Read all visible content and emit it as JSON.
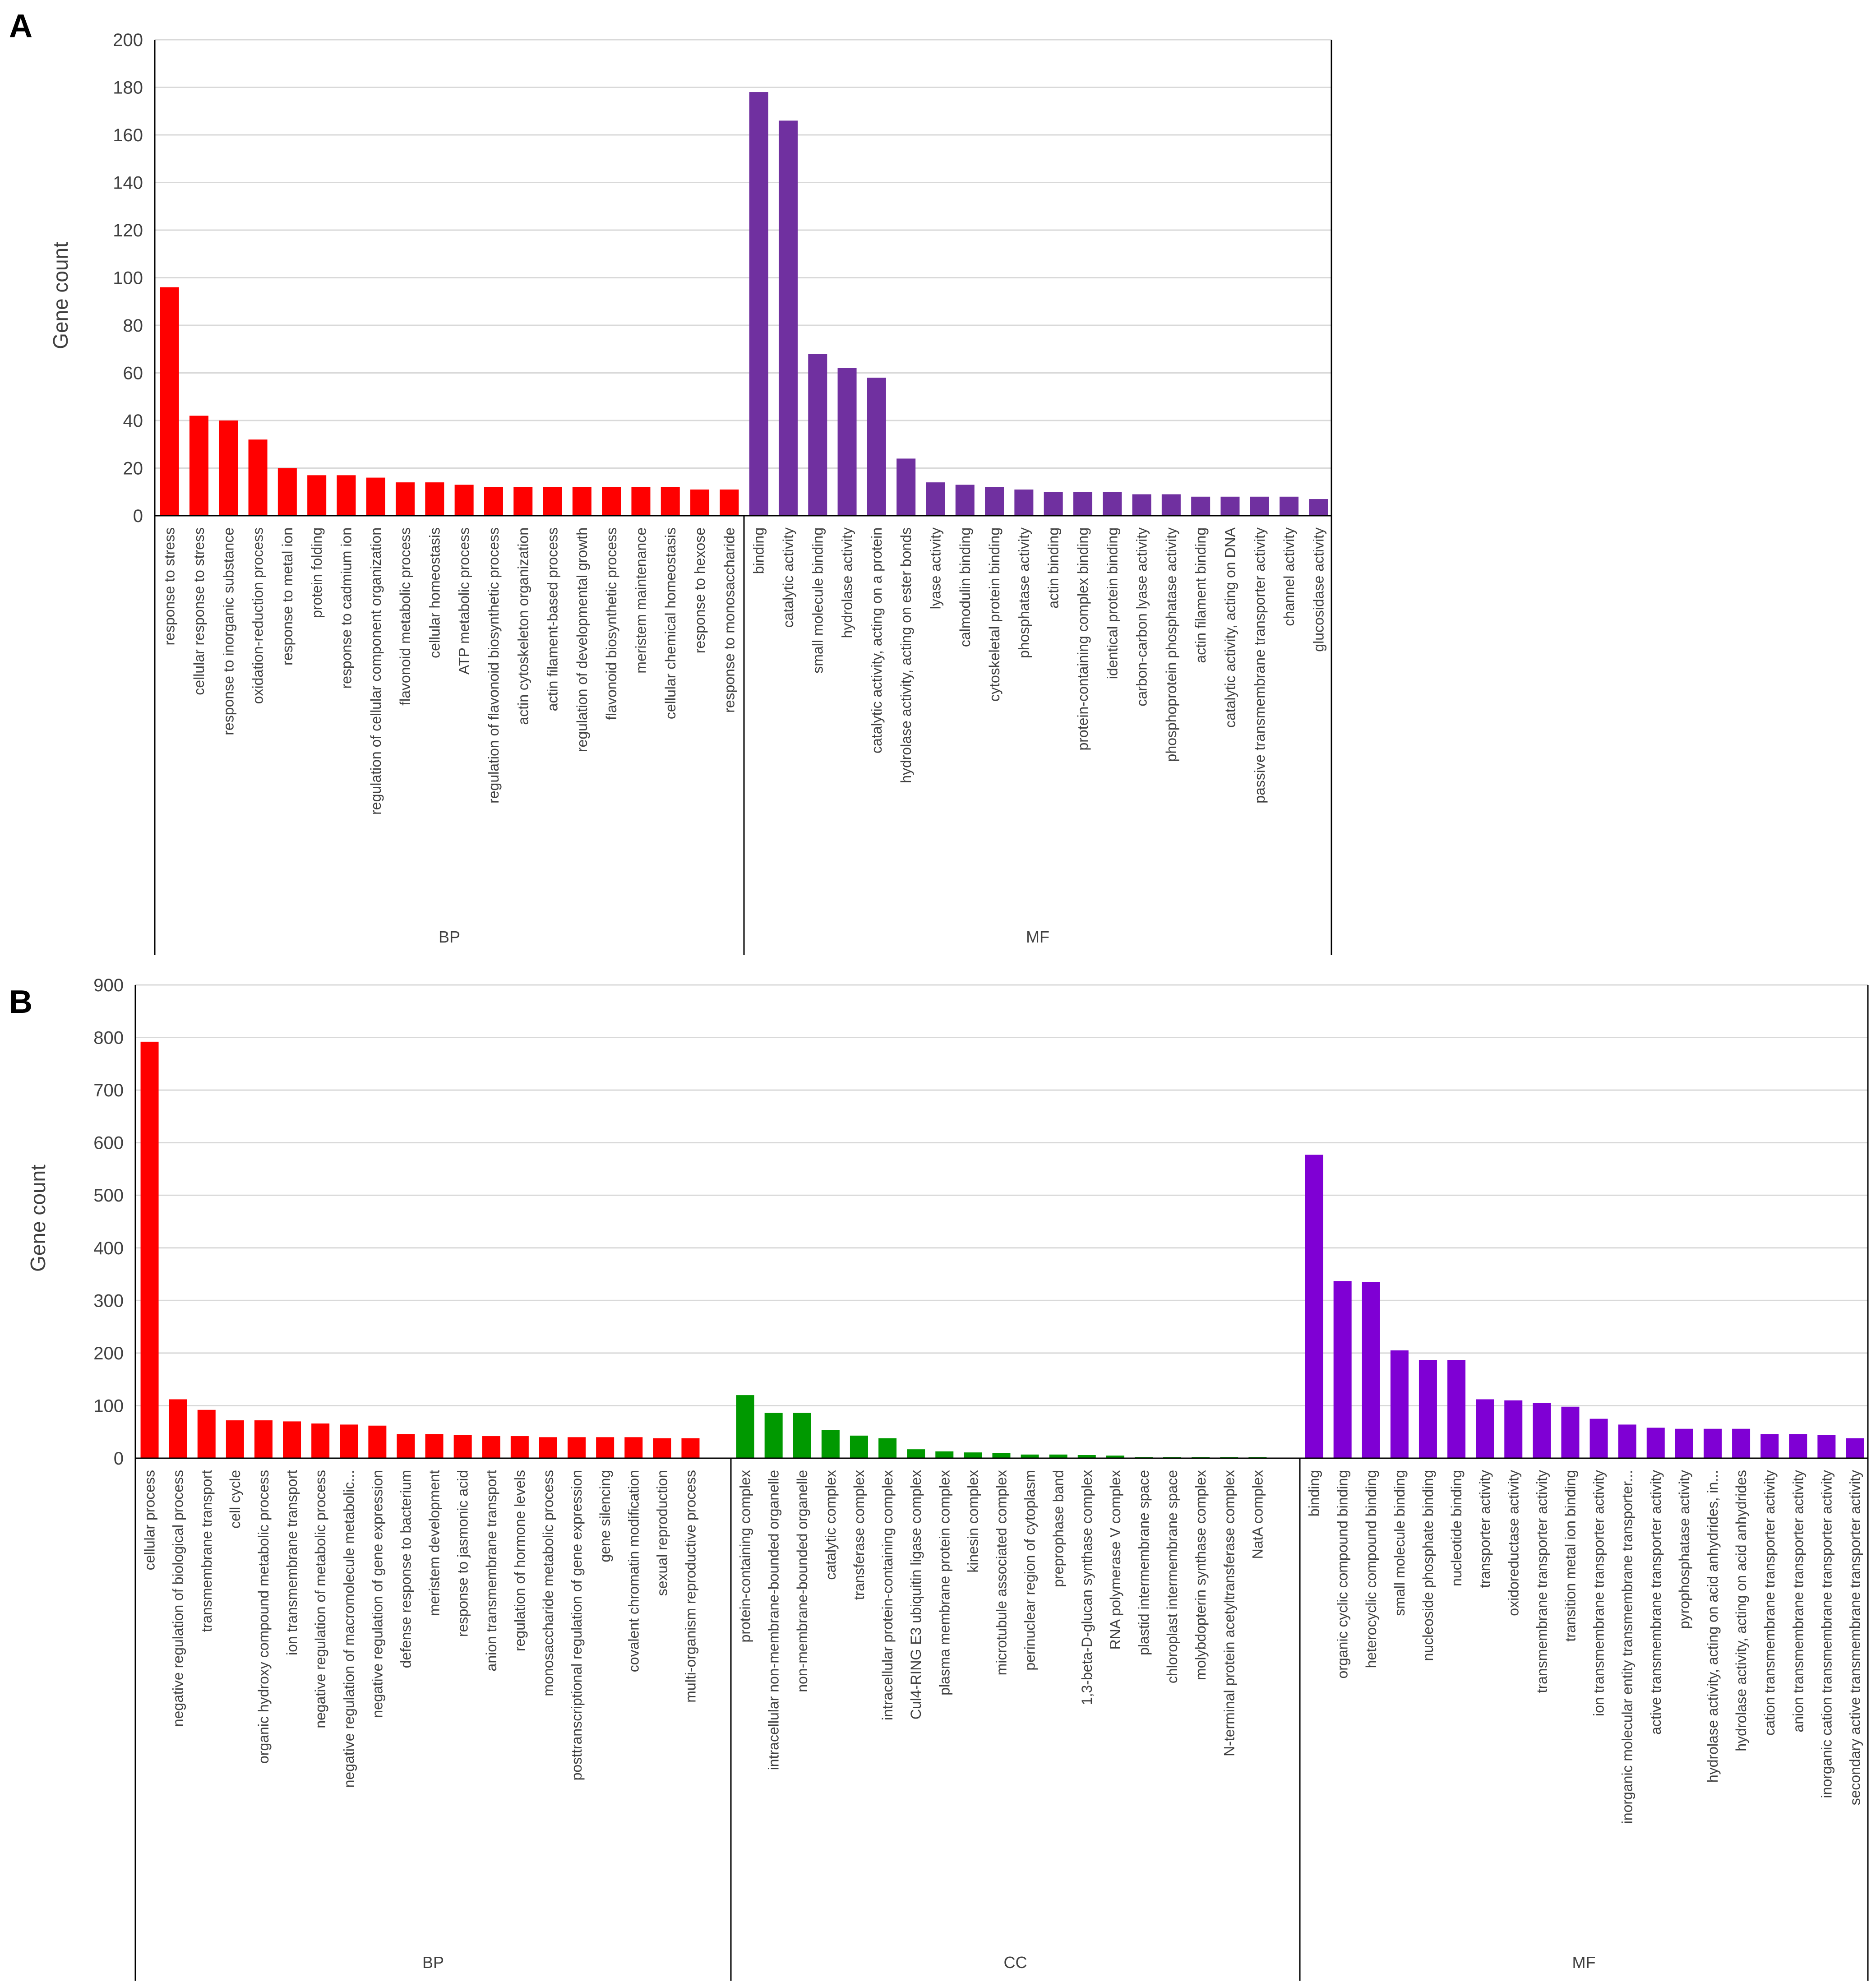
{
  "panels": [
    {
      "letter": "A",
      "ylabel": "Gene count",
      "ymax": 200,
      "yticks": [
        0,
        20,
        40,
        60,
        80,
        100,
        120,
        140,
        160,
        180,
        200
      ],
      "groups": [
        {
          "name": "BP",
          "color": "#ff0000",
          "categories": [
            "response to stress",
            "cellular response to stress",
            "response to inorganic substance",
            "oxidation-reduction process",
            "response to metal ion",
            "protein folding",
            "response to cadmium ion",
            "regulation of cellular component organization",
            "flavonoid metabolic process",
            "cellular homeostasis",
            "ATP metabolic process",
            "regulation of flavonoid biosynthetic process",
            "actin cytoskeleton organization",
            "actin filament-based process",
            "regulation of developmental growth",
            "flavonoid biosynthetic process",
            "meristem maintenance",
            "cellular chemical homeostasis",
            "response to hexose",
            "response to monosaccharide"
          ],
          "values": [
            96,
            42,
            40,
            32,
            20,
            17,
            17,
            16,
            14,
            14,
            13,
            12,
            12,
            12,
            12,
            12,
            12,
            12,
            11,
            11
          ]
        },
        {
          "name": "MF",
          "color": "#7030a0",
          "categories": [
            "binding",
            "catalytic activity",
            "small molecule binding",
            "hydrolase activity",
            "catalytic activity, acting on a protein",
            "hydrolase activity, acting on ester bonds",
            "lyase activity",
            "calmodulin binding",
            "cytoskeletal protein binding",
            "phosphatase activity",
            "actin binding",
            "protein-containing complex binding",
            "identical protein binding",
            "carbon-carbon lyase activity",
            "phosphoprotein phosphatase activity",
            "actin filament binding",
            "catalytic activity, acting on DNA",
            "passive transmembrane transporter activity",
            "channel activity",
            "glucosidase activity"
          ],
          "values": [
            178,
            166,
            68,
            62,
            58,
            24,
            14,
            13,
            12,
            11,
            10,
            10,
            10,
            9,
            9,
            8,
            8,
            8,
            8,
            7
          ]
        }
      ]
    },
    {
      "letter": "B",
      "ylabel": "Gene count",
      "ymax": 900,
      "yticks": [
        0,
        100,
        200,
        300,
        400,
        500,
        600,
        700,
        800,
        900
      ],
      "groups": [
        {
          "name": "BP",
          "color": "#ff0000",
          "categories": [
            "cellular process",
            "negative regulation of biological process",
            "transmembrane transport",
            "cell cycle",
            "organic hydroxy compound metabolic process",
            "ion transmembrane transport",
            "negative regulation of metabolic process",
            "negative regulation of macromolecule metabolic...",
            "negative regulation of gene expression",
            "defense response to bacterium",
            "meristem development",
            "response to jasmonic acid",
            "anion transmembrane transport",
            "regulation of hormone levels",
            "monosaccharide metabolic process",
            "posttranscriptional regulation of gene expression",
            "gene silencing",
            "covalent chromatin modification",
            "sexual reproduction",
            "multi-organism reproductive process"
          ],
          "values": [
            792,
            112,
            92,
            72,
            72,
            70,
            66,
            64,
            62,
            46,
            46,
            44,
            42,
            42,
            40,
            40,
            40,
            40,
            38,
            38
          ]
        },
        {
          "name": "CC",
          "color": "#009900",
          "categories": [
            "protein-containing complex",
            "intracellular non-membrane-bounded organelle",
            "non-membrane-bounded organelle",
            "catalytic complex",
            "transferase complex",
            "intracellular protein-containing complex",
            "Cul4-RING E3 ubiquitin ligase complex",
            "plasma membrane protein complex",
            "kinesin complex",
            "microtubule associated complex",
            "perinuclear region of cytoplasm",
            "preprophase band",
            "1,3-beta-D-glucan synthase complex",
            "RNA polymerase V complex",
            "plastid intermembrane space",
            "chloroplast intermembrane space",
            "molybdopterin synthase complex",
            "N-terminal protein acetyltransferase complex",
            "NatA complex"
          ],
          "values": [
            120,
            86,
            86,
            54,
            43,
            38,
            17,
            13,
            11,
            10,
            7,
            7,
            6,
            5,
            2,
            2,
            2,
            2,
            2
          ]
        },
        {
          "name": "MF",
          "color": "#7f00d4",
          "categories": [
            "binding",
            "organic cyclic compound binding",
            "heterocyclic compound binding",
            "small molecule binding",
            "nucleoside phosphate binding",
            "nucleotide binding",
            "transporter activity",
            "oxidoreductase activity",
            "transmembrane transporter activity",
            "transition metal ion binding",
            "ion transmembrane transporter activity",
            "inorganic molecular entity transmembrane transporter...",
            "active transmembrane transporter activity",
            "pyrophosphatase activity",
            "hydrolase activity, acting on acid anhydrides, in...",
            "hydrolase activity, acting on acid anhydrides",
            "cation transmembrane transporter activity",
            "anion transmembrane transporter activity",
            "inorganic cation transmembrane transporter activity",
            "secondary active transmembrane transporter activity"
          ],
          "values": [
            577,
            337,
            335,
            205,
            187,
            187,
            112,
            110,
            105,
            98,
            75,
            64,
            58,
            56,
            56,
            56,
            46,
            46,
            44,
            38
          ]
        }
      ]
    }
  ],
  "chart_data": [
    {
      "type": "bar",
      "title": "A",
      "xlabel": "",
      "ylabel": "Gene count",
      "ylim": [
        0,
        200
      ],
      "grid": true,
      "series": [
        {
          "name": "BP",
          "categories": [
            "response to stress",
            "cellular response to stress",
            "response to inorganic substance",
            "oxidation-reduction process",
            "response to metal ion",
            "protein folding",
            "response to cadmium ion",
            "regulation of cellular component organization",
            "flavonoid metabolic process",
            "cellular homeostasis",
            "ATP metabolic process",
            "regulation of flavonoid biosynthetic process",
            "actin cytoskeleton organization",
            "actin filament-based process",
            "regulation of developmental growth",
            "flavonoid biosynthetic process",
            "meristem maintenance",
            "cellular chemical homeostasis",
            "response to hexose",
            "response to monosaccharide"
          ],
          "values": [
            96,
            42,
            40,
            32,
            20,
            17,
            17,
            16,
            14,
            14,
            13,
            12,
            12,
            12,
            12,
            12,
            12,
            12,
            11,
            11
          ]
        },
        {
          "name": "MF",
          "categories": [
            "binding",
            "catalytic activity",
            "small molecule binding",
            "hydrolase activity",
            "catalytic activity, acting on a protein",
            "hydrolase activity, acting on ester bonds",
            "lyase activity",
            "calmodulin binding",
            "cytoskeletal protein binding",
            "phosphatase activity",
            "actin binding",
            "protein-containing complex binding",
            "identical protein binding",
            "carbon-carbon lyase activity",
            "phosphoprotein phosphatase activity",
            "actin filament binding",
            "catalytic activity, acting on DNA",
            "passive transmembrane transporter activity",
            "channel activity",
            "glucosidase activity"
          ],
          "values": [
            178,
            166,
            68,
            62,
            58,
            24,
            14,
            13,
            12,
            11,
            10,
            10,
            10,
            9,
            9,
            8,
            8,
            8,
            8,
            7
          ]
        }
      ]
    },
    {
      "type": "bar",
      "title": "B",
      "xlabel": "",
      "ylabel": "Gene count",
      "ylim": [
        0,
        900
      ],
      "grid": true,
      "series": [
        {
          "name": "BP",
          "categories": [
            "cellular process",
            "negative regulation of biological process",
            "transmembrane transport",
            "cell cycle",
            "organic hydroxy compound metabolic process",
            "ion transmembrane transport",
            "negative regulation of metabolic process",
            "negative regulation of macromolecule metabolic...",
            "negative regulation of gene expression",
            "defense response to bacterium",
            "meristem development",
            "response to jasmonic acid",
            "anion transmembrane transport",
            "regulation of hormone levels",
            "monosaccharide metabolic process",
            "posttranscriptional regulation of gene expression",
            "gene silencing",
            "covalent chromatin modification",
            "sexual reproduction",
            "multi-organism reproductive process"
          ],
          "values": [
            792,
            112,
            92,
            72,
            72,
            70,
            66,
            64,
            62,
            46,
            46,
            44,
            42,
            42,
            40,
            40,
            40,
            40,
            38,
            38
          ]
        },
        {
          "name": "CC",
          "categories": [
            "protein-containing complex",
            "intracellular non-membrane-bounded organelle",
            "non-membrane-bounded organelle",
            "catalytic complex",
            "transferase complex",
            "intracellular protein-containing complex",
            "Cul4-RING E3 ubiquitin ligase complex",
            "plasma membrane protein complex",
            "kinesin complex",
            "microtubule associated complex",
            "perinuclear region of cytoplasm",
            "preprophase band",
            "1,3-beta-D-glucan synthase complex",
            "RNA polymerase V complex",
            "plastid intermembrane space",
            "chloroplast intermembrane space",
            "molybdopterin synthase complex",
            "N-terminal protein acetyltransferase complex",
            "NatA complex"
          ],
          "values": [
            120,
            86,
            86,
            54,
            43,
            38,
            17,
            13,
            11,
            10,
            7,
            7,
            6,
            5,
            2,
            2,
            2,
            2,
            2
          ]
        },
        {
          "name": "MF",
          "categories": [
            "binding",
            "organic cyclic compound binding",
            "heterocyclic compound binding",
            "small molecule binding",
            "nucleoside phosphate binding",
            "nucleotide binding",
            "transporter activity",
            "oxidoreductase activity",
            "transmembrane transporter activity",
            "transition metal ion binding",
            "ion transmembrane transporter activity",
            "inorganic molecular entity transmembrane transporter...",
            "active transmembrane transporter activity",
            "pyrophosphatase activity",
            "hydrolase activity, acting on acid anhydrides, in...",
            "hydrolase activity, acting on acid anhydrides",
            "cation transmembrane transporter activity",
            "anion transmembrane transporter activity",
            "inorganic cation transmembrane transporter activity",
            "secondary active transmembrane transporter activity"
          ],
          "values": [
            577,
            337,
            335,
            205,
            187,
            187,
            112,
            110,
            105,
            98,
            75,
            64,
            58,
            56,
            56,
            56,
            46,
            46,
            44,
            38
          ]
        }
      ]
    }
  ]
}
